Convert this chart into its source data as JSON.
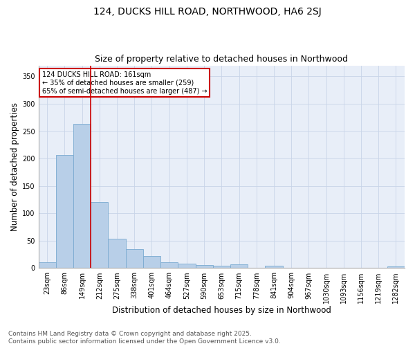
{
  "title1": "124, DUCKS HILL ROAD, NORTHWOOD, HA6 2SJ",
  "title2": "Size of property relative to detached houses in Northwood",
  "xlabel": "Distribution of detached houses by size in Northwood",
  "ylabel": "Number of detached properties",
  "categories": [
    "23sqm",
    "86sqm",
    "149sqm",
    "212sqm",
    "275sqm",
    "338sqm",
    "401sqm",
    "464sqm",
    "527sqm",
    "590sqm",
    "653sqm",
    "715sqm",
    "778sqm",
    "841sqm",
    "904sqm",
    "967sqm",
    "1030sqm",
    "1093sqm",
    "1156sqm",
    "1219sqm",
    "1282sqm"
  ],
  "values": [
    11,
    206,
    263,
    120,
    54,
    35,
    22,
    11,
    8,
    6,
    4,
    7,
    0,
    4,
    0,
    0,
    0,
    0,
    0,
    0,
    3
  ],
  "bar_color": "#b8cfe8",
  "bar_edge_color": "#7aaad0",
  "vline_x": 2.5,
  "vline_color": "#cc0000",
  "annotation_box_text": "124 DUCKS HILL ROAD: 161sqm\n← 35% of detached houses are smaller (259)\n65% of semi-detached houses are larger (487) →",
  "annotation_box_color": "#cc0000",
  "annotation_box_facecolor": "white",
  "ylim": [
    0,
    370
  ],
  "yticks": [
    0,
    50,
    100,
    150,
    200,
    250,
    300,
    350
  ],
  "grid_color": "#c8d4e8",
  "bg_color": "#e8eef8",
  "footer1": "Contains HM Land Registry data © Crown copyright and database right 2025.",
  "footer2": "Contains public sector information licensed under the Open Government Licence v3.0.",
  "title1_fontsize": 10,
  "title2_fontsize": 9,
  "xlabel_fontsize": 8.5,
  "ylabel_fontsize": 8.5,
  "tick_fontsize": 7,
  "footer_fontsize": 6.5,
  "annot_fontsize": 7
}
